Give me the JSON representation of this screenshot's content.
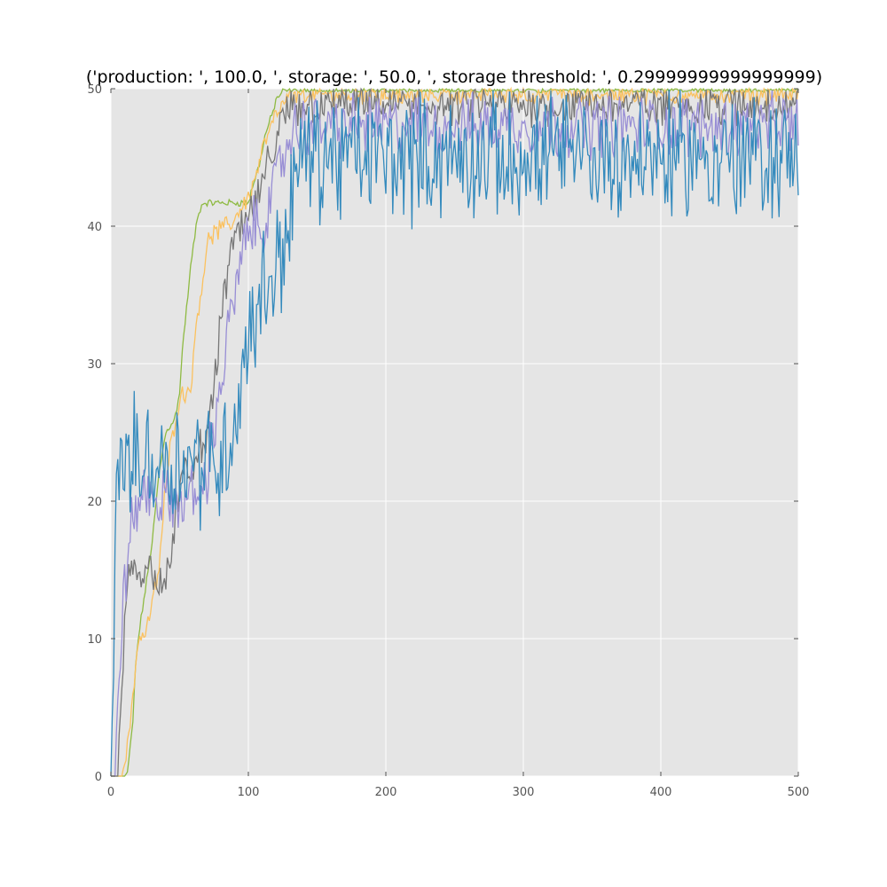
{
  "chart_data": {
    "type": "line",
    "title": "('production: ', 100.0, ', storage: ', 50.0, ', storage threshold: ', 0.29999999999999999)",
    "xlabel": "",
    "ylabel": "",
    "xlim": [
      0,
      500
    ],
    "ylim": [
      0,
      50
    ],
    "xticks": [
      0,
      100,
      200,
      300,
      400,
      500
    ],
    "yticks": [
      0,
      10,
      20,
      30,
      40,
      50
    ],
    "grid": true,
    "legend": "none",
    "background": "#e5e5e5",
    "series": [
      {
        "color": "#8eba42",
        "x": [
          0,
          10,
          12,
          14,
          16,
          18,
          20,
          22,
          25,
          30,
          35,
          40,
          42,
          45,
          48,
          50,
          52,
          55,
          58,
          60,
          62,
          64,
          66,
          68,
          70,
          72,
          90,
          95,
          100,
          102,
          105,
          108,
          110,
          112,
          115,
          118,
          120,
          125,
          130,
          500
        ],
        "y": [
          0,
          0,
          0.3,
          2,
          4,
          8,
          10,
          11.5,
          13.5,
          17,
          22,
          25,
          25.3,
          25.8,
          26.5,
          28,
          31,
          34,
          37,
          38.5,
          40,
          41,
          41.5,
          41.7,
          41.7,
          41.7,
          41.7,
          41.7,
          41.7,
          42.5,
          43.5,
          44.5,
          45.5,
          46.5,
          47.5,
          48.3,
          49.2,
          49.8,
          50,
          50
        ],
        "noise": 0.2
      },
      {
        "color": "#fbc15e",
        "x": [
          0,
          8,
          12,
          16,
          20,
          25,
          30,
          35,
          38,
          42,
          45,
          48,
          50,
          55,
          58,
          60,
          62,
          65,
          68,
          70,
          72,
          75,
          78,
          80,
          85,
          90,
          95,
          100,
          105,
          110,
          115,
          120,
          125,
          130,
          140,
          500
        ],
        "y": [
          0,
          0,
          2,
          6,
          10,
          10.3,
          12.5,
          15,
          19,
          23,
          25,
          26.5,
          27.5,
          28,
          28.5,
          30,
          33,
          35,
          37,
          38.5,
          39.2,
          39.5,
          39.6,
          39.8,
          40,
          40.5,
          41.5,
          42,
          43.5,
          45.5,
          46.8,
          48,
          48.8,
          49.3,
          49.6,
          49.6
        ],
        "noise": 0.6
      },
      {
        "color": "#777777",
        "x": [
          0,
          5,
          8,
          10,
          12,
          15,
          20,
          25,
          30,
          35,
          40,
          45,
          50,
          55,
          60,
          65,
          70,
          75,
          80,
          85,
          90,
          95,
          100,
          105,
          110,
          115,
          120,
          125,
          130,
          140,
          150,
          500
        ],
        "y": [
          0,
          0,
          6,
          11,
          14,
          15,
          15,
          15,
          15,
          14.5,
          14,
          17,
          21,
          22,
          22,
          24,
          25,
          28,
          33,
          37,
          39,
          40,
          40.5,
          41.5,
          43,
          44.5,
          46,
          47.5,
          48.5,
          48.8,
          48.8,
          48.8
        ],
        "noise": 1.2
      },
      {
        "color": "#988ed5",
        "x": [
          0,
          3,
          5,
          8,
          10,
          15,
          20,
          25,
          30,
          35,
          40,
          45,
          50,
          55,
          60,
          65,
          70,
          72,
          75,
          80,
          85,
          90,
          95,
          100,
          105,
          110,
          115,
          120,
          125,
          130,
          140,
          150,
          500
        ],
        "y": [
          0,
          0,
          6,
          11,
          14,
          18,
          20,
          20.5,
          20.5,
          20,
          20,
          20,
          20,
          20,
          20.5,
          20.5,
          22,
          23.5,
          25.5,
          28.5,
          32,
          35,
          37.5,
          39.5,
          40,
          40,
          41.5,
          43,
          45,
          46.5,
          47.3,
          47.3,
          47.3
        ],
        "noise": 1.8
      },
      {
        "color": "#348abd",
        "x": [
          0,
          3,
          5,
          10,
          20,
          30,
          40,
          50,
          60,
          70,
          80,
          85,
          90,
          95,
          100,
          105,
          110,
          115,
          120,
          125,
          130,
          135,
          140,
          150,
          160,
          500
        ],
        "y": [
          0,
          16,
          22,
          23,
          23,
          23,
          23,
          23,
          23,
          23,
          23,
          24,
          26,
          29,
          32,
          34,
          35,
          36,
          37,
          38.5,
          41,
          44,
          45,
          45,
          45,
          45
        ],
        "noise": 3.6
      }
    ]
  }
}
